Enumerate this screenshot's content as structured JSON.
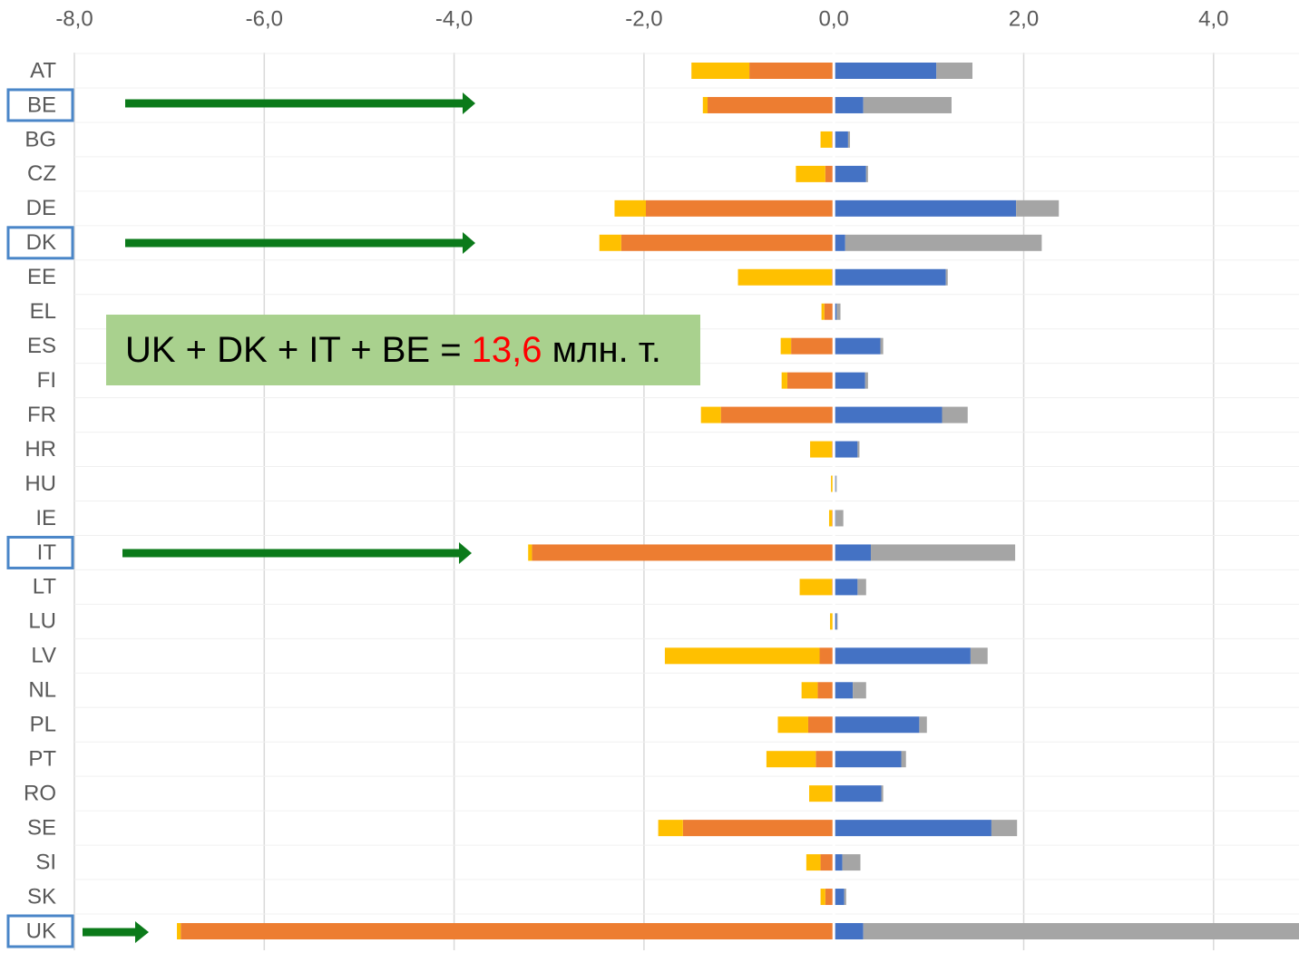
{
  "chart_data": {
    "type": "bar",
    "orientation": "horizontal",
    "stacked": true,
    "categories": [
      "AT",
      "BE",
      "BG",
      "CZ",
      "DE",
      "DK",
      "EE",
      "EL",
      "ES",
      "FI",
      "FR",
      "HR",
      "HU",
      "IE",
      "IT",
      "LT",
      "LU",
      "LV",
      "NL",
      "PL",
      "PT",
      "RO",
      "SE",
      "SI",
      "SK",
      "UK"
    ],
    "series": [
      {
        "color": "#ed7d31",
        "values": [
          -0.89,
          -1.33,
          -0.02,
          -0.09,
          -1.98,
          -2.24,
          -0.02,
          -0.1,
          -0.45,
          -0.49,
          -1.19,
          -0.02,
          -0.01,
          -0.02,
          -3.18,
          -0.02,
          -0.01,
          -0.15,
          -0.17,
          -0.27,
          -0.19,
          -0.02,
          -1.59,
          -0.14,
          -0.09,
          -6.88
        ]
      },
      {
        "color": "#ffc000",
        "values": [
          -0.61,
          -0.05,
          -0.12,
          -0.31,
          -0.33,
          -0.23,
          -0.99,
          -0.03,
          -0.11,
          -0.06,
          -0.21,
          -0.23,
          -0.02,
          -0.03,
          -0.04,
          -0.34,
          -0.03,
          -1.63,
          -0.17,
          -0.32,
          -0.52,
          -0.24,
          -0.26,
          -0.15,
          -0.05,
          -0.04
        ]
      },
      {
        "color": "#4472c4",
        "values": [
          1.08,
          0.31,
          0.15,
          0.34,
          1.92,
          0.12,
          1.18,
          0.03,
          0.49,
          0.33,
          1.14,
          0.25,
          0.02,
          0.02,
          0.39,
          0.25,
          0.03,
          1.44,
          0.2,
          0.9,
          0.71,
          0.5,
          1.66,
          0.09,
          0.11,
          0.31
        ]
      },
      {
        "color": "#a5a5a5",
        "values": [
          0.38,
          0.93,
          0.02,
          0.02,
          0.45,
          2.07,
          0.02,
          0.04,
          0.03,
          0.03,
          0.27,
          0.02,
          0.01,
          0.08,
          1.52,
          0.09,
          0.01,
          0.18,
          0.14,
          0.08,
          0.05,
          0.02,
          0.27,
          0.19,
          0.02,
          4.6
        ]
      }
    ],
    "xlim": [
      -8,
      4.9
    ],
    "xticks": [
      {
        "value": -8,
        "label": "-8,0"
      },
      {
        "value": -6,
        "label": "-6,0"
      },
      {
        "value": -4,
        "label": "-4,0"
      },
      {
        "value": -2,
        "label": "-2,0"
      },
      {
        "value": 0,
        "label": "0,0"
      },
      {
        "value": 2,
        "label": "2,0"
      },
      {
        "value": 4,
        "label": "4,0"
      }
    ],
    "grid": true,
    "highlight": [
      1,
      5,
      14,
      25
    ],
    "annotation": {
      "before": "UK + DK + IT + BE = ",
      "highlight": "13,6",
      "after": " млн. т."
    }
  }
}
